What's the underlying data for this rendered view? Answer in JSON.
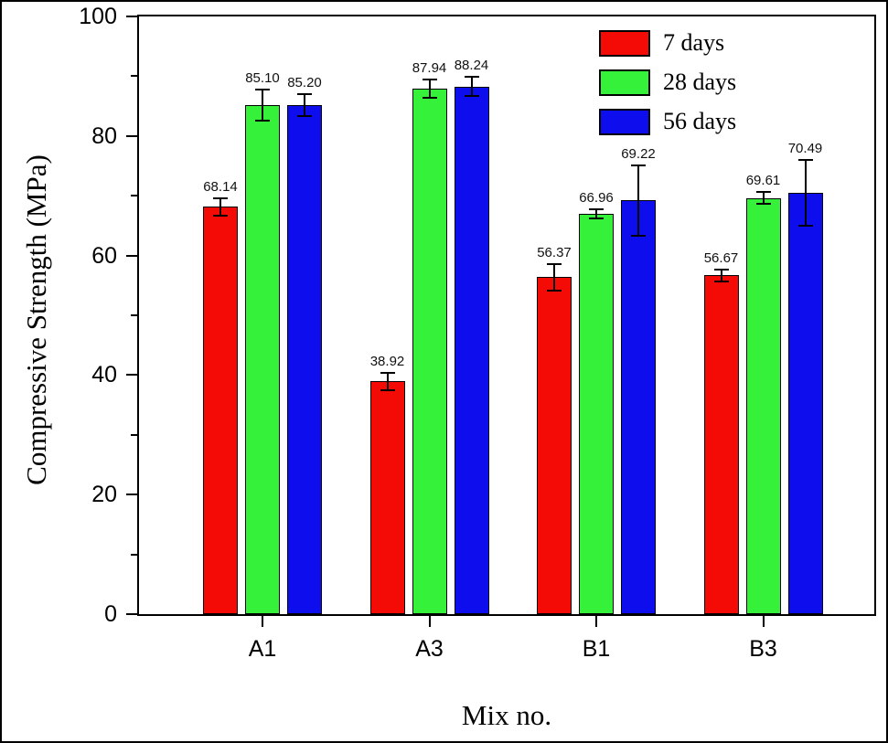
{
  "chart_data": {
    "type": "bar",
    "title": "",
    "xlabel": "Mix no.",
    "ylabel": "Compressive Strength (MPa)",
    "categories": [
      "A1",
      "A3",
      "B1",
      "B3"
    ],
    "series": [
      {
        "name": "7 days",
        "color": "#f40b06",
        "values": [
          68.14,
          38.92,
          56.37,
          56.67
        ],
        "errors": [
          1.5,
          1.5,
          2.2,
          1.0
        ]
      },
      {
        "name": "28 days",
        "color": "#35f13a",
        "values": [
          85.1,
          87.94,
          66.96,
          69.61
        ],
        "errors": [
          2.6,
          1.5,
          0.8,
          1.0
        ]
      },
      {
        "name": "56 days",
        "color": "#0d0dee",
        "values": [
          85.2,
          88.24,
          69.22,
          70.49
        ],
        "errors": [
          1.8,
          1.6,
          5.9,
          5.5
        ]
      }
    ],
    "value_label_format": "2dp",
    "ylim": [
      0,
      100
    ],
    "yticks": [
      0,
      20,
      40,
      60,
      80,
      100
    ],
    "yticks_minor": [
      10,
      30,
      50,
      70,
      90
    ],
    "grid": false,
    "legend_position": "top-right"
  }
}
